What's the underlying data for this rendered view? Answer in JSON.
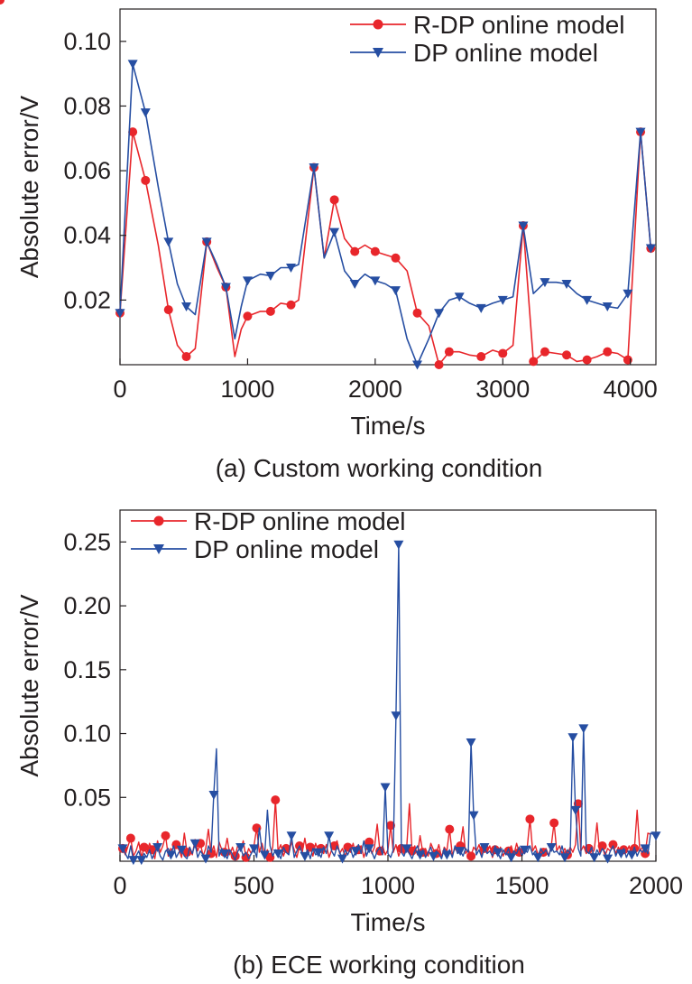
{
  "chart_data": [
    {
      "type": "line",
      "caption": "(a) Custom working condition",
      "xlabel": "Time/s",
      "ylabel": "Absolute error/V",
      "xlim": [
        0,
        4200
      ],
      "ylim": [
        0,
        0.11
      ],
      "xticks": [
        {
          "value": 0,
          "label": "0"
        },
        {
          "value": 1000,
          "label": "1000"
        },
        {
          "value": 2000,
          "label": "2000"
        },
        {
          "value": 3000,
          "label": "3000"
        },
        {
          "value": 4000,
          "label": "4000"
        }
      ],
      "yticks": [
        {
          "value": 0.02,
          "label": "0.02"
        },
        {
          "value": 0.04,
          "label": "0.04"
        },
        {
          "value": 0.06,
          "label": "0.06"
        },
        {
          "value": 0.08,
          "label": "0.08"
        },
        {
          "value": 0.1,
          "label": "0.10"
        }
      ],
      "legend_position": "top-right",
      "series": [
        {
          "name": "R-DP online model",
          "color": "#e8262b",
          "marker": "circle",
          "x": [
            0,
            100,
            200,
            300,
            380,
            450,
            520,
            590,
            680,
            760,
            830,
            900,
            950,
            1000,
            1100,
            1180,
            1260,
            1340,
            1400,
            1520,
            1600,
            1680,
            1760,
            1840,
            1920,
            2000,
            2080,
            2160,
            2250,
            2330,
            2420,
            2500,
            2580,
            2660,
            2740,
            2830,
            2920,
            3000,
            3080,
            3160,
            3240,
            3330,
            3420,
            3500,
            3580,
            3660,
            3740,
            3820,
            3900,
            3980,
            4080,
            4160
          ],
          "y": [
            0.016,
            0.072,
            0.057,
            0.037,
            0.017,
            0.006,
            0.0025,
            0.005,
            0.038,
            0.03,
            0.024,
            0.0025,
            0.011,
            0.015,
            0.0165,
            0.0165,
            0.019,
            0.0185,
            0.02,
            0.061,
            0.033,
            0.051,
            0.039,
            0.035,
            0.037,
            0.035,
            0.034,
            0.033,
            0.029,
            0.016,
            0.012,
            0.0,
            0.004,
            0.004,
            0.003,
            0.0025,
            0.0045,
            0.0035,
            0.006,
            0.043,
            0.001,
            0.004,
            0.0035,
            0.003,
            0.001,
            0.0015,
            0.0025,
            0.004,
            0.0035,
            0.0015,
            0.072,
            0.036
          ],
          "markers_at": [
            0,
            1,
            2,
            4,
            6,
            8,
            10,
            13,
            15,
            17,
            19,
            21,
            23,
            25,
            27,
            29,
            31,
            32,
            35,
            37,
            39,
            40,
            41,
            43,
            45,
            47,
            49,
            50,
            51
          ]
        },
        {
          "name": "DP online model",
          "color": "#264ea2",
          "marker": "triangle-down",
          "x": [
            0,
            100,
            200,
            300,
            380,
            450,
            520,
            590,
            680,
            760,
            830,
            900,
            950,
            1000,
            1100,
            1180,
            1260,
            1340,
            1400,
            1520,
            1600,
            1680,
            1760,
            1840,
            1920,
            2000,
            2080,
            2160,
            2250,
            2330,
            2420,
            2500,
            2580,
            2660,
            2740,
            2830,
            2920,
            3000,
            3080,
            3160,
            3240,
            3330,
            3420,
            3500,
            3580,
            3660,
            3740,
            3820,
            3900,
            3980,
            4080,
            4160
          ],
          "y": [
            0.016,
            0.093,
            0.078,
            0.055,
            0.038,
            0.025,
            0.018,
            0.0155,
            0.038,
            0.031,
            0.024,
            0.008,
            0.018,
            0.026,
            0.028,
            0.0275,
            0.03,
            0.03,
            0.031,
            0.061,
            0.033,
            0.041,
            0.029,
            0.025,
            0.028,
            0.026,
            0.025,
            0.023,
            0.008,
            0.0,
            0.008,
            0.016,
            0.02,
            0.021,
            0.019,
            0.0175,
            0.019,
            0.02,
            0.021,
            0.043,
            0.022,
            0.0255,
            0.0255,
            0.025,
            0.022,
            0.02,
            0.019,
            0.018,
            0.0175,
            0.022,
            0.072,
            0.036
          ],
          "markers_at": [
            0,
            1,
            2,
            4,
            6,
            8,
            10,
            13,
            15,
            17,
            19,
            21,
            23,
            25,
            27,
            29,
            31,
            33,
            35,
            37,
            39,
            41,
            43,
            45,
            47,
            49,
            50,
            51
          ]
        }
      ]
    },
    {
      "type": "line",
      "caption": "(b) ECE working condition",
      "xlabel": "Time/s",
      "ylabel": "Absolute error/V",
      "xlim": [
        0,
        2000
      ],
      "ylim": [
        0,
        0.275
      ],
      "xticks": [
        {
          "value": 0,
          "label": "0"
        },
        {
          "value": 500,
          "label": "500"
        },
        {
          "value": 1000,
          "label": "1000"
        },
        {
          "value": 1500,
          "label": "1500"
        },
        {
          "value": 2000,
          "label": "2000"
        }
      ],
      "yticks": [
        {
          "value": 0.05,
          "label": "0.05"
        },
        {
          "value": 0.1,
          "label": "0.10"
        },
        {
          "value": 0.15,
          "label": "0.15"
        },
        {
          "value": 0.2,
          "label": "0.20"
        },
        {
          "value": 0.25,
          "label": "0.25"
        }
      ],
      "legend_position": "top-left",
      "x_start": 10,
      "x_step": 10,
      "series": [
        {
          "name": "R-DP online model",
          "color": "#e8262b",
          "marker": "circle",
          "y": [
            0.01,
            0.005,
            0.012,
            0.018,
            0.004,
            0.008,
            0.015,
            0.003,
            0.011,
            0.006,
            0.014,
            0.009,
            0.002,
            0.016,
            0.007,
            0.012,
            0.02,
            0.004,
            0.01,
            0.006,
            0.013,
            0.009,
            0.003,
            0.022,
            0.007,
            0.011,
            0.005,
            0.017,
            0.008,
            0.014,
            0.004,
            0.01,
            0.025,
            0.006,
            0.012,
            0.003,
            0.015,
            0.009,
            0.007,
            0.018,
            0.005,
            0.011,
            0.004,
            0.013,
            0.008,
            0.016,
            0.003,
            0.01,
            0.006,
            0.012,
            0.026,
            0.007,
            0.014,
            0.005,
            0.009,
            0.003,
            0.011,
            0.048,
            0.008,
            0.013,
            0.004,
            0.01,
            0.006,
            0.015,
            0.009,
            0.003,
            0.012,
            0.007,
            0.018,
            0.005,
            0.011,
            0.004,
            0.014,
            0.008,
            0.01,
            0.006,
            0.013,
            0.003,
            0.009,
            0.012,
            0.016,
            0.006,
            0.01,
            0.004,
            0.011,
            0.007,
            0.014,
            0.005,
            0.009,
            0.012,
            0.003,
            0.01,
            0.015,
            0.006,
            0.011,
            0.029,
            0.008,
            0.012,
            0.005,
            0.009,
            0.028,
            0.007,
            0.013,
            0.004,
            0.01,
            0.006,
            0.011,
            0.045,
            0.008,
            0.012,
            0.005,
            0.02,
            0.007,
            0.01,
            0.004,
            0.014,
            0.009,
            0.006,
            0.013,
            0.003,
            0.011,
            0.008,
            0.025,
            0.005,
            0.01,
            0.007,
            0.012,
            0.027,
            0.006,
            0.009,
            0.004,
            0.011,
            0.008,
            0.013,
            0.005,
            0.01,
            0.007,
            0.012,
            0.003,
            0.009,
            0.006,
            0.011,
            0.004,
            0.01,
            0.008,
            0.012,
            0.005,
            0.014,
            0.007,
            0.01,
            0.006,
            0.011,
            0.033,
            0.008,
            0.012,
            0.005,
            0.009,
            0.007,
            0.01,
            0.004,
            0.013,
            0.03,
            0.008,
            0.012,
            0.006,
            0.01,
            0.005,
            0.011,
            0.007,
            0.013,
            0.045,
            0.008,
            0.012,
            0.006,
            0.01,
            0.005,
            0.009,
            0.03,
            0.007,
            0.012,
            0.004,
            0.01,
            0.008,
            0.013,
            0.006,
            0.011,
            0.005,
            0.009,
            0.007,
            0.012,
            0.004,
            0.01,
            0.04,
            0.008,
            0.011,
            0.006,
            0.022,
            0.021
          ],
          "markers_at": [
            0,
            3,
            8,
            11,
            16,
            20,
            24,
            29,
            33,
            38,
            42,
            46,
            50,
            55,
            57,
            61,
            66,
            70,
            74,
            79,
            84,
            88,
            92,
            96,
            100,
            104,
            108,
            112,
            117,
            122,
            126,
            130,
            135,
            139,
            144,
            148,
            152,
            157,
            161,
            166,
            170,
            174,
            179,
            183,
            187,
            191,
            195,
            199
          ]
        },
        {
          "name": "DP online model",
          "color": "#264ea2",
          "marker": "triangle-down",
          "y": [
            0.01,
            0.006,
            0.002,
            0.012,
            0.001,
            0.004,
            0.008,
            0.001,
            0.006,
            0.003,
            0.009,
            0.002,
            0.007,
            0.011,
            0.004,
            0.001,
            0.008,
            0.01,
            0.005,
            0.012,
            0.003,
            0.007,
            0.009,
            0.004,
            0.002,
            0.011,
            0.006,
            0.014,
            0.003,
            0.008,
            0.005,
            0.002,
            0.012,
            0.007,
            0.052,
            0.088,
            0.004,
            0.01,
            0.006,
            0.002,
            0.009,
            0.005,
            0.001,
            0.008,
            0.011,
            0.004,
            0.007,
            0.002,
            0.006,
            0.01,
            0.003,
            0.026,
            0.008,
            0.005,
            0.04,
            0.012,
            0.004,
            0.009,
            0.006,
            0.002,
            0.011,
            0.007,
            0.005,
            0.02,
            0.003,
            0.008,
            0.012,
            0.006,
            0.004,
            0.009,
            0.002,
            0.01,
            0.005,
            0.007,
            0.003,
            0.011,
            0.006,
            0.02,
            0.008,
            0.004,
            0.012,
            0.007,
            0.002,
            0.009,
            0.005,
            0.01,
            0.003,
            0.008,
            0.013,
            0.006,
            0.016,
            0.004,
            0.01,
            0.007,
            0.002,
            0.008,
            0.011,
            0.005,
            0.058,
            0.006,
            0.003,
            0.009,
            0.114,
            0.248,
            0.007,
            0.004,
            0.01,
            0.006,
            0.002,
            0.008,
            0.012,
            0.005,
            0.009,
            0.003,
            0.007,
            0.011,
            0.004,
            0.008,
            0.006,
            0.002,
            0.01,
            0.005,
            0.009,
            0.003,
            0.012,
            0.006,
            0.008,
            0.004,
            0.01,
            0.007,
            0.093,
            0.036,
            0.005,
            0.009,
            0.003,
            0.011,
            0.006,
            0.008,
            0.004,
            0.012,
            0.007,
            0.002,
            0.009,
            0.005,
            0.01,
            0.003,
            0.008,
            0.006,
            0.011,
            0.004,
            0.009,
            0.007,
            0.012,
            0.005,
            0.008,
            0.003,
            0.01,
            0.006,
            0.009,
            0.004,
            0.011,
            0.007,
            0.008,
            0.005,
            0.012,
            0.003,
            0.009,
            0.006,
            0.097,
            0.04,
            0.01,
            0.004,
            0.104,
            0.008,
            0.006,
            0.011,
            0.003,
            0.009,
            0.005,
            0.01,
            0.007,
            0.002,
            0.008,
            0.012,
            0.004,
            0.009,
            0.006,
            0.01,
            0.003,
            0.008,
            0.005,
            0.011,
            0.004,
            0.009,
            0.007,
            0.01,
            0.006,
            0.022,
            0.021,
            0.02
          ],
          "markers_at": [
            0,
            4,
            7,
            13,
            18,
            22,
            27,
            31,
            34,
            38,
            44,
            49,
            53,
            58,
            63,
            68,
            73,
            77,
            82,
            87,
            92,
            98,
            102,
            103,
            106,
            111,
            116,
            121,
            126,
            130,
            131,
            135,
            140,
            145,
            150,
            155,
            160,
            165,
            168,
            169,
            172,
            176,
            181,
            186,
            190,
            195,
            199
          ]
        }
      ]
    }
  ]
}
